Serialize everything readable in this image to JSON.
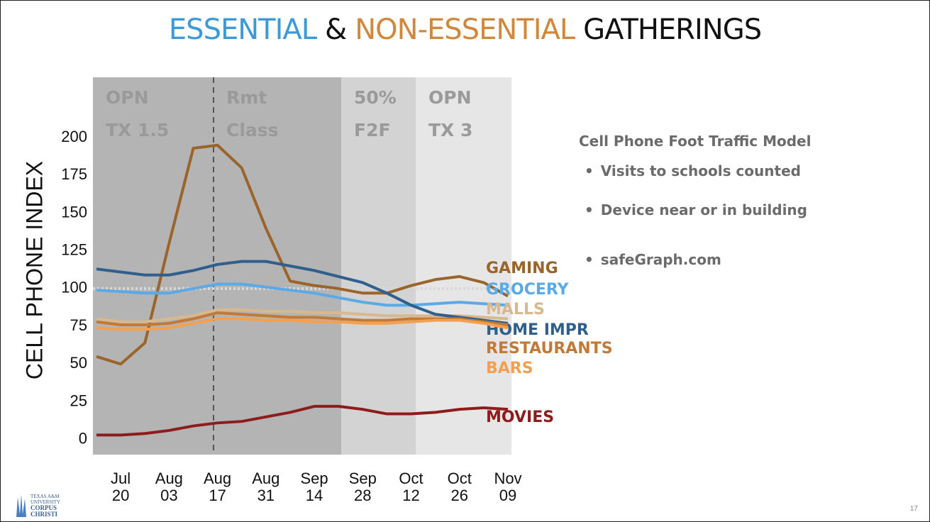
{
  "slide": {
    "title_parts": [
      {
        "text": "ESSENTIAL",
        "color": "#3c9ad8"
      },
      {
        "text": "&",
        "color": "#111111"
      },
      {
        "text": "NON-ESSENTIAL",
        "color": "#d2883c"
      },
      {
        "text": "GATHERINGS",
        "color": "#111111"
      }
    ],
    "side_title": "Cell Phone Foot Traffic Model",
    "bullets": [
      "Visits to schools counted",
      "Device near or in building",
      "safeGraph.com"
    ],
    "logo": [
      "TEXAS A&M",
      "UNIVERSITY",
      "CORPUS",
      "CHRISTI"
    ],
    "page_number": "17"
  },
  "chart_data": {
    "type": "line",
    "y_label": "CELL PHONE INDEX",
    "categories": [
      null,
      "Jul 20",
      null,
      "Aug 03",
      null,
      "Aug 17",
      null,
      "Aug 31",
      null,
      "Sep 14",
      null,
      "Sep 28",
      null,
      "Oct 12",
      null,
      "Oct 26",
      null,
      "Nov 09"
    ],
    "ylim": [
      -10,
      240
    ],
    "yticks": [
      0,
      25,
      50,
      75,
      100,
      125,
      150,
      175,
      200
    ],
    "reference_line": 100,
    "phases": [
      {
        "lines": [
          "OPN",
          "TX 1.5"
        ],
        "color": "#b4b4b4"
      },
      {
        "lines": [
          "Rmt",
          "Class"
        ],
        "color": "#b4b4b4"
      },
      {
        "lines": [
          "50%",
          "F2F"
        ],
        "color": "#d3d3d3"
      },
      {
        "lines": [
          "OPN",
          "TX 3"
        ],
        "color": "#e6e6e6"
      }
    ],
    "series": [
      {
        "name": "GAMING",
        "color": "#9a642b",
        "values": [
          55,
          50,
          64,
          130,
          193,
          195,
          180,
          140,
          105,
          102,
          100,
          97,
          97,
          102,
          106,
          108,
          104,
          95
        ]
      },
      {
        "name": "GROCERY",
        "color": "#5aaae8",
        "values": [
          99,
          98,
          97,
          97,
          100,
          103,
          103,
          101,
          99,
          97,
          94,
          91,
          89,
          89,
          90,
          91,
          90,
          89
        ]
      },
      {
        "name": "MALLS",
        "color": "#d8b98e",
        "values": [
          80,
          78,
          78,
          80,
          82,
          86,
          86,
          85,
          85,
          84,
          84,
          83,
          82,
          82,
          82,
          82,
          81,
          80
        ]
      },
      {
        "name": "HOME IMPR",
        "color": "#2f5f8c",
        "values": [
          113,
          111,
          109,
          109,
          112,
          116,
          118,
          118,
          115,
          112,
          108,
          104,
          97,
          89,
          83,
          81,
          79,
          77
        ]
      },
      {
        "name": "RESTAURANTS",
        "color": "#c27a36",
        "values": [
          78,
          76,
          76,
          77,
          80,
          84,
          83,
          82,
          81,
          81,
          80,
          79,
          79,
          80,
          80,
          80,
          78,
          76
        ]
      },
      {
        "name": "BARS",
        "color": "#f5a04e",
        "values": [
          74,
          73,
          73,
          74,
          77,
          80,
          80,
          79,
          79,
          78,
          78,
          77,
          77,
          78,
          79,
          79,
          77,
          74
        ]
      },
      {
        "name": "MOVIES",
        "color": "#8e1c1c",
        "values": [
          3,
          3,
          4,
          6,
          9,
          11,
          12,
          15,
          18,
          22,
          22,
          20,
          17,
          17,
          18,
          20,
          21,
          20
        ]
      }
    ]
  }
}
